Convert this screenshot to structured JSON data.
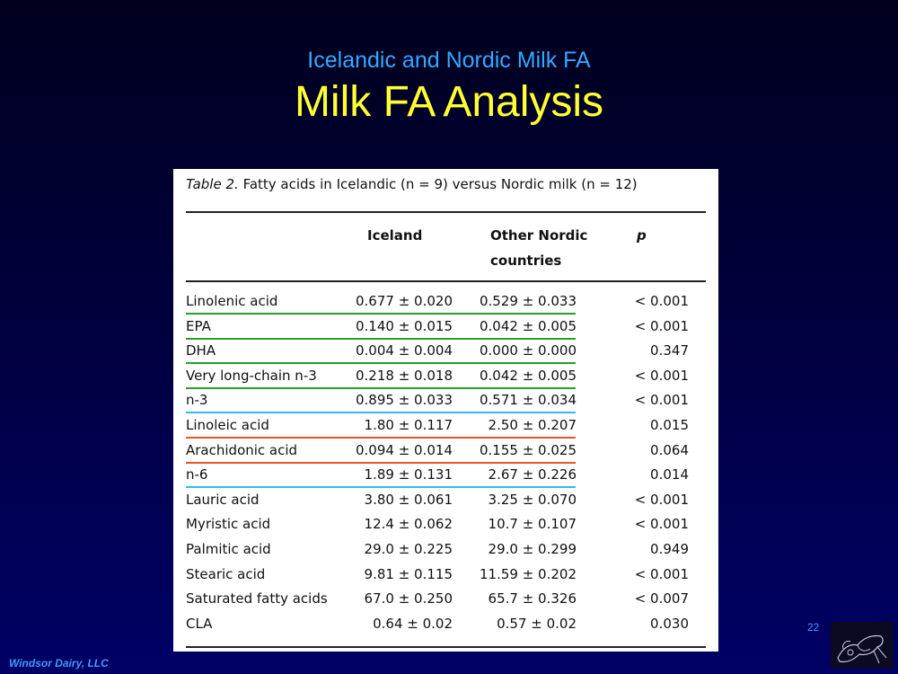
{
  "slide": {
    "subtitle": "Icelandic and Nordic Milk FA",
    "title": "Milk FA Analysis",
    "footer": "Windsor Dairy, LLC",
    "page_number": "22"
  },
  "table": {
    "caption_label": "Table 2.",
    "caption_text": "Fatty acids in Icelandic (n = 9) versus Nordic milk (n = 12)",
    "headers": {
      "col1": "Iceland",
      "col2_line1": "Other Nordic",
      "col2_line2": "countries",
      "col3": "p"
    },
    "rows": [
      {
        "name": "Linolenic acid",
        "iceland": "0.677 ± 0.020",
        "nordic": "0.529 ± 0.033",
        "p": "< 0.001",
        "underline": "#2a9d2a"
      },
      {
        "name": "EPA",
        "iceland": "0.140 ± 0.015",
        "nordic": "0.042 ± 0.005",
        "p": "< 0.001",
        "underline": "#2a9d2a"
      },
      {
        "name": "DHA",
        "iceland": "0.004 ± 0.004",
        "nordic": "0.000 ± 0.000",
        "p": "0.347",
        "underline": "#2a9d2a"
      },
      {
        "name": "Very long-chain n-3",
        "iceland": "0.218 ± 0.018",
        "nordic": "0.042 ± 0.005",
        "p": "< 0.001",
        "underline": "#2a9d2a"
      },
      {
        "name": "n-3",
        "iceland": "0.895 ± 0.033",
        "nordic": "0.571 ± 0.034",
        "p": "< 0.001",
        "underline": "#33bbee"
      },
      {
        "name": "Linoleic acid",
        "iceland": "1.80 ± 0.117",
        "nordic": "2.50 ± 0.207",
        "p": "0.015",
        "underline": "#e8552a"
      },
      {
        "name": "Arachidonic acid",
        "iceland": "0.094 ± 0.014",
        "nordic": "0.155 ± 0.025",
        "p": "0.064",
        "underline": "#e8552a"
      },
      {
        "name": "n-6",
        "iceland": "1.89 ± 0.131",
        "nordic": "2.67 ± 0.226",
        "p": "0.014",
        "underline": "#33bbee"
      },
      {
        "name": "Lauric acid",
        "iceland": "3.80 ± 0.061",
        "nordic": "3.25 ± 0.070",
        "p": "< 0.001",
        "underline": ""
      },
      {
        "name": "Myristic acid",
        "iceland": "12.4 ± 0.062",
        "nordic": "10.7 ± 0.107",
        "p": "< 0.001",
        "underline": ""
      },
      {
        "name": "Palmitic acid",
        "iceland": "29.0 ± 0.225",
        "nordic": "29.0 ± 0.299",
        "p": "0.949",
        "underline": ""
      },
      {
        "name": "Stearic acid",
        "iceland": "9.81 ± 0.115",
        "nordic": "11.59 ± 0.202",
        "p": "< 0.001",
        "underline": ""
      },
      {
        "name": "Saturated fatty acids",
        "iceland": "67.0 ± 0.250",
        "nordic": "65.7 ± 0.326",
        "p": "< 0.007",
        "underline": ""
      },
      {
        "name": "CLA",
        "iceland": "0.64 ± 0.02",
        "nordic": "0.57 ± 0.02",
        "p": "0.030",
        "underline": ""
      }
    ]
  },
  "logo_icon": "cow-sketch-icon"
}
